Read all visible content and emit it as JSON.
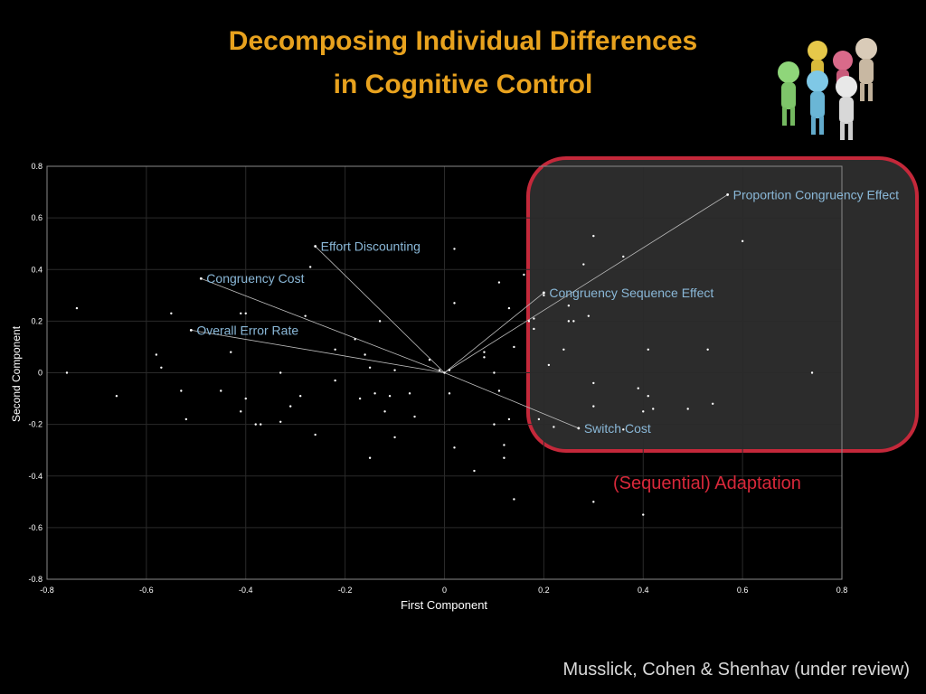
{
  "slide": {
    "title_line1": "Decomposing Individual Differences",
    "title_line2": "in Cognitive Control",
    "citation": "Musslick, Cohen & Shenhav  (under review)",
    "callout": "(Sequential) Adaptation",
    "illustration": "group-of-people-figures-icon"
  },
  "colors": {
    "title": "#e8a21e",
    "callout": "#d8283a",
    "highlight_border": "#c4283a",
    "vector_label": "#8ab8d8",
    "points": "#ffffff"
  },
  "chart_data": {
    "type": "scatter",
    "xlabel": "First Component",
    "ylabel": "Second Component",
    "xlim": [
      -0.8,
      0.8
    ],
    "ylim": [
      -0.8,
      0.8
    ],
    "xticks": [
      "-0.8",
      "-0.6",
      "-0.4",
      "-0.2",
      "0",
      "0.2",
      "0.4",
      "0.6",
      "0.8"
    ],
    "yticks": [
      "0.8",
      "0.6",
      "0.4",
      "0.2",
      "0",
      "-0.2",
      "-0.4",
      "-0.6",
      "-0.8"
    ],
    "grid": true,
    "vectors": [
      {
        "label": "Proportion Congruency Effect",
        "x": 0.57,
        "y": 0.69
      },
      {
        "label": "Effort Discounting",
        "x": -0.26,
        "y": 0.49
      },
      {
        "label": "Congruency Cost",
        "x": -0.49,
        "y": 0.365
      },
      {
        "label": "Congruency Sequence Effect",
        "x": 0.2,
        "y": 0.31
      },
      {
        "label": "Overall Error Rate",
        "x": -0.51,
        "y": 0.165
      },
      {
        "label": "Switch Cost",
        "x": 0.27,
        "y": -0.215
      }
    ],
    "points": [
      [
        -0.76,
        0.0
      ],
      [
        -0.74,
        0.25
      ],
      [
        -0.66,
        -0.09
      ],
      [
        -0.58,
        0.07
      ],
      [
        -0.57,
        0.02
      ],
      [
        -0.55,
        0.23
      ],
      [
        -0.53,
        -0.07
      ],
      [
        -0.52,
        -0.18
      ],
      [
        -0.45,
        -0.07
      ],
      [
        -0.43,
        0.08
      ],
      [
        -0.41,
        0.23
      ],
      [
        -0.4,
        0.23
      ],
      [
        -0.41,
        -0.15
      ],
      [
        -0.4,
        -0.1
      ],
      [
        -0.38,
        -0.2
      ],
      [
        -0.37,
        -0.2
      ],
      [
        -0.33,
        -0.19
      ],
      [
        -0.33,
        0.0
      ],
      [
        -0.31,
        -0.13
      ],
      [
        -0.29,
        -0.09
      ],
      [
        -0.28,
        0.22
      ],
      [
        -0.27,
        0.41
      ],
      [
        -0.26,
        -0.24
      ],
      [
        -0.22,
        -0.03
      ],
      [
        -0.22,
        0.09
      ],
      [
        -0.18,
        0.13
      ],
      [
        -0.17,
        -0.1
      ],
      [
        -0.16,
        0.07
      ],
      [
        -0.15,
        0.02
      ],
      [
        -0.15,
        -0.33
      ],
      [
        -0.14,
        -0.08
      ],
      [
        -0.13,
        0.2
      ],
      [
        -0.12,
        -0.15
      ],
      [
        -0.11,
        -0.09
      ],
      [
        -0.1,
        -0.25
      ],
      [
        -0.1,
        0.01
      ],
      [
        -0.07,
        -0.08
      ],
      [
        -0.06,
        -0.17
      ],
      [
        -0.03,
        0.05
      ],
      [
        -0.01,
        0.01
      ],
      [
        0.0,
        0.0
      ],
      [
        0.01,
        0.01
      ],
      [
        0.01,
        -0.08
      ],
      [
        0.02,
        0.48
      ],
      [
        0.02,
        0.27
      ],
      [
        0.02,
        -0.29
      ],
      [
        0.06,
        -0.38
      ],
      [
        0.08,
        0.06
      ],
      [
        0.08,
        0.08
      ],
      [
        0.1,
        0.0
      ],
      [
        0.1,
        -0.2
      ],
      [
        0.11,
        0.35
      ],
      [
        0.11,
        -0.07
      ],
      [
        0.12,
        -0.28
      ],
      [
        0.12,
        -0.33
      ],
      [
        0.13,
        0.25
      ],
      [
        0.13,
        -0.18
      ],
      [
        0.14,
        0.1
      ],
      [
        0.14,
        -0.49
      ],
      [
        0.16,
        0.38
      ],
      [
        0.17,
        0.2
      ],
      [
        0.18,
        0.21
      ],
      [
        0.18,
        0.17
      ],
      [
        0.19,
        -0.18
      ],
      [
        0.2,
        0.3
      ],
      [
        0.21,
        0.03
      ],
      [
        0.22,
        -0.21
      ],
      [
        0.24,
        0.09
      ],
      [
        0.25,
        0.26
      ],
      [
        0.25,
        0.2
      ],
      [
        0.26,
        0.2
      ],
      [
        0.28,
        0.42
      ],
      [
        0.29,
        0.22
      ],
      [
        0.3,
        0.53
      ],
      [
        0.3,
        -0.04
      ],
      [
        0.3,
        -0.13
      ],
      [
        0.3,
        -0.5
      ],
      [
        0.36,
        -0.22
      ],
      [
        0.36,
        0.45
      ],
      [
        0.39,
        -0.06
      ],
      [
        0.4,
        -0.15
      ],
      [
        0.4,
        -0.55
      ],
      [
        0.41,
        -0.09
      ],
      [
        0.41,
        0.09
      ],
      [
        0.42,
        -0.14
      ],
      [
        0.49,
        -0.14
      ],
      [
        0.53,
        0.09
      ],
      [
        0.54,
        -0.12
      ],
      [
        0.6,
        0.51
      ],
      [
        0.74,
        0.0
      ]
    ]
  }
}
